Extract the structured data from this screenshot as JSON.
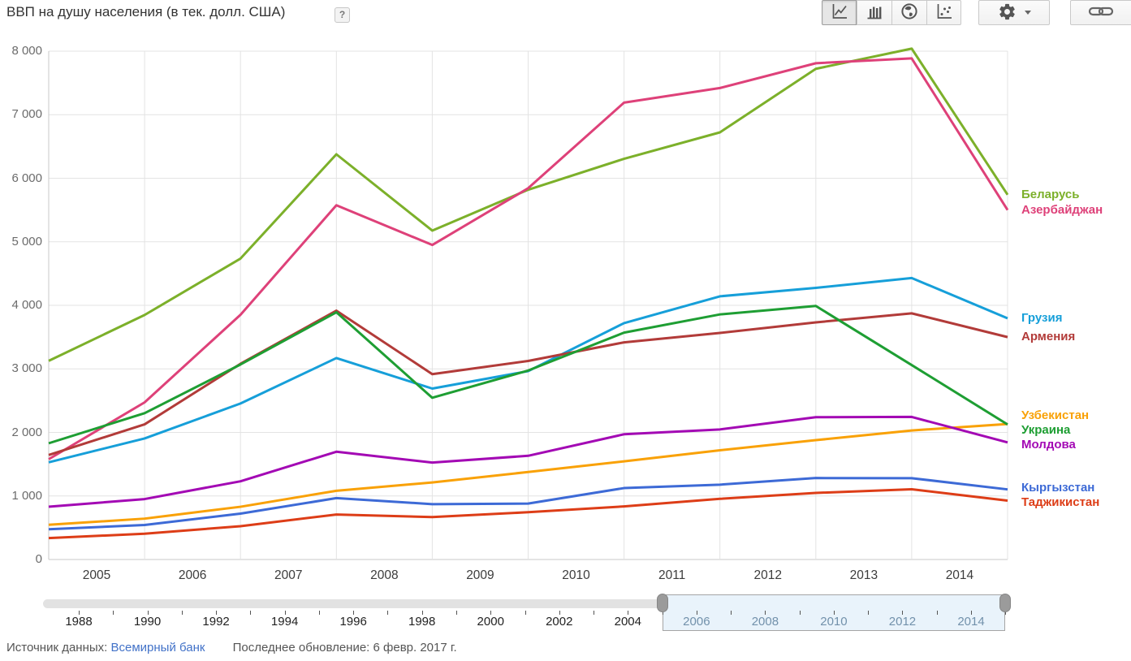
{
  "header": {
    "title": "ВВП на душу населения (в тек. долл. США)",
    "help_label": "?"
  },
  "toolbar": {
    "chart_type_buttons": [
      {
        "icon": "line-chart-icon",
        "selected": true
      },
      {
        "icon": "bar-chart-icon",
        "selected": false
      },
      {
        "icon": "world-map-icon",
        "selected": false
      },
      {
        "icon": "scatter-chart-icon",
        "selected": false
      }
    ],
    "settings_icon": "gear-icon",
    "share_icon": "link-icon"
  },
  "chart_data": {
    "type": "line",
    "title": "ВВП на душу населения (в тек. долл. США)",
    "x": [
      2005,
      2006,
      2007,
      2008,
      2009,
      2010,
      2011,
      2012,
      2013,
      2014,
      2015
    ],
    "x_axis_labels": [
      "2005",
      "2006",
      "2007",
      "2008",
      "2009",
      "2010",
      "2011",
      "2012",
      "2013",
      "2014"
    ],
    "ylim": [
      0,
      8000
    ],
    "y_tick_labels": [
      "0",
      "1 000",
      "2 000",
      "3 000",
      "4 000",
      "5 000",
      "6 000",
      "7 000",
      "8 000"
    ],
    "grid": true,
    "legend_position": "right",
    "series": [
      {
        "name": "Беларусь",
        "color": "#7CB02A",
        "values": [
          3126,
          3848,
          4736,
          6377,
          5176,
          5819,
          6306,
          6722,
          7722,
          8040,
          5740
        ]
      },
      {
        "name": "Азербайджан",
        "color": "#DE4179",
        "values": [
          1578,
          2473,
          3851,
          5575,
          4950,
          5843,
          7190,
          7420,
          7810,
          7886,
          5500
        ]
      },
      {
        "name": "Грузия",
        "color": "#169FD9",
        "values": [
          1530,
          1905,
          2455,
          3170,
          2690,
          2964,
          3720,
          4142,
          4275,
          4430,
          3796
        ]
      },
      {
        "name": "Армения",
        "color": "#B23B39",
        "values": [
          1644,
          2127,
          3080,
          3916,
          2917,
          3125,
          3417,
          3566,
          3732,
          3874,
          3500
        ]
      },
      {
        "name": "Узбекистан",
        "color": "#F9A106",
        "values": [
          546,
          643,
          830,
          1082,
          1213,
          1377,
          1545,
          1719,
          1878,
          2031,
          2132
        ]
      },
      {
        "name": "Украина",
        "color": "#1E9E33",
        "values": [
          1829,
          2303,
          3069,
          3891,
          2545,
          2974,
          3570,
          3857,
          3990,
          3060,
          2125
        ]
      },
      {
        "name": "Молдова",
        "color": "#A309B4",
        "values": [
          831,
          951,
          1231,
          1696,
          1526,
          1632,
          1971,
          2047,
          2240,
          2244,
          1843
        ]
      },
      {
        "name": "Кыргызстан",
        "color": "#3D6AD6",
        "values": [
          476,
          543,
          722,
          966,
          871,
          880,
          1124,
          1178,
          1282,
          1280,
          1103
        ]
      },
      {
        "name": "Таджикистан",
        "color": "#DD3D17",
        "values": [
          337,
          406,
          524,
          708,
          668,
          744,
          835,
          955,
          1048,
          1105,
          926
        ]
      }
    ]
  },
  "slider": {
    "axis_start_year": 1988,
    "axis_end_year": 2015,
    "label_years": [
      1988,
      1990,
      1992,
      1994,
      1996,
      1998,
      2000,
      2002,
      2004,
      2006,
      2008,
      2010,
      2012,
      2014
    ],
    "selection_start_year": 2005,
    "selection_end_year": 2015
  },
  "footer": {
    "source_label": "Источник данных:",
    "source_link": "Всемирный банк",
    "updated": "Последнее обновление: 6 февр. 2017 г."
  }
}
